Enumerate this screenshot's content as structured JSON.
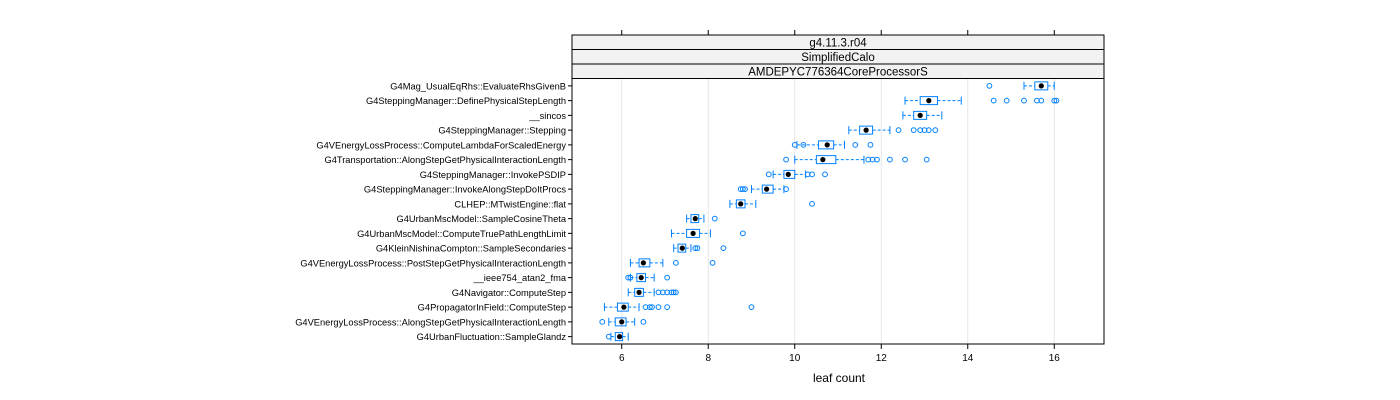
{
  "strips": [
    "g4.11.3.r04",
    "SimplifiedCalo",
    "AMDEPYC776364CoreProcessorS"
  ],
  "colors": {
    "box": "#0080ff",
    "strip": "#f2f2f2",
    "frame": "#000000",
    "grid": "#e6e6e6",
    "median": "#000000"
  },
  "chart_data": {
    "type": "box",
    "xlabel": "leaf count",
    "xlim": [
      4.85,
      17.15
    ],
    "xticks": [
      6,
      8,
      10,
      12,
      14,
      16
    ],
    "grid": "vertical",
    "series": [
      {
        "label": "G4Mag_UsualEqRhs::EvaluateRhsGivenB",
        "min": 15.3,
        "q1": 15.55,
        "median": 15.7,
        "q3": 15.85,
        "max": 16.0,
        "outliers": [
          14.5
        ]
      },
      {
        "label": "G4SteppingManager::DefinePhysicalStepLength",
        "min": 12.55,
        "q1": 12.9,
        "median": 13.1,
        "q3": 13.3,
        "max": 13.85,
        "outliers": [
          14.6,
          14.9,
          15.3,
          15.6,
          15.7,
          16.0,
          16.05
        ]
      },
      {
        "label": "__sincos",
        "min": 12.5,
        "q1": 12.75,
        "median": 12.9,
        "q3": 13.05,
        "max": 13.4,
        "outliers": []
      },
      {
        "label": "G4SteppingManager::Stepping",
        "min": 11.25,
        "q1": 11.5,
        "median": 11.65,
        "q3": 11.8,
        "max": 12.2,
        "outliers": [
          12.4,
          12.75,
          12.9,
          13.0,
          13.1,
          13.25
        ]
      },
      {
        "label": "G4VEnergyLossProcess::ComputeLambdaForScaledEnergy",
        "min": 10.05,
        "q1": 10.55,
        "median": 10.75,
        "q3": 10.9,
        "max": 11.15,
        "outliers": [
          10.0,
          10.2,
          11.4,
          11.75
        ]
      },
      {
        "label": "G4Transportation::AlongStepGetPhysicalInteractionLength",
        "min": 10.0,
        "q1": 10.5,
        "median": 10.65,
        "q3": 10.95,
        "max": 11.6,
        "outliers": [
          9.8,
          11.7,
          11.8,
          11.9,
          12.2,
          12.55,
          13.05
        ]
      },
      {
        "label": "G4SteppingManager::InvokePSDIP",
        "min": 9.5,
        "q1": 9.75,
        "median": 9.85,
        "q3": 10.0,
        "max": 10.25,
        "outliers": [
          9.4,
          10.3,
          10.4,
          10.7
        ]
      },
      {
        "label": "G4SteppingManager::InvokeAlongStepDoItProcs",
        "min": 9.0,
        "q1": 9.25,
        "median": 9.35,
        "q3": 9.5,
        "max": 9.75,
        "outliers": [
          8.75,
          8.8,
          8.85,
          9.8
        ]
      },
      {
        "label": "CLHEP::MTwistEngine::flat",
        "min": 8.5,
        "q1": 8.65,
        "median": 8.75,
        "q3": 8.85,
        "max": 9.1,
        "outliers": [
          10.4
        ]
      },
      {
        "label": "G4UrbanMscModel::SampleCosineTheta",
        "min": 7.5,
        "q1": 7.6,
        "median": 7.7,
        "q3": 7.78,
        "max": 7.9,
        "outliers": [
          8.15
        ]
      },
      {
        "label": "G4UrbanMscModel::ComputeTruePathLengthLimit",
        "min": 7.15,
        "q1": 7.5,
        "median": 7.65,
        "q3": 7.8,
        "max": 8.05,
        "outliers": [
          8.8
        ]
      },
      {
        "label": "G4KleinNishinaCompton::SampleSecondaries",
        "min": 7.2,
        "q1": 7.3,
        "median": 7.4,
        "q3": 7.48,
        "max": 7.6,
        "outliers": [
          7.7,
          7.75,
          8.35
        ]
      },
      {
        "label": "G4VEnergyLossProcess::PostStepGetPhysicalInteractionLength",
        "min": 6.2,
        "q1": 6.4,
        "median": 6.5,
        "q3": 6.65,
        "max": 6.95,
        "outliers": [
          7.25,
          8.1
        ]
      },
      {
        "label": "__ieee754_atan2_fma",
        "min": 6.2,
        "q1": 6.35,
        "median": 6.45,
        "q3": 6.55,
        "max": 6.75,
        "outliers": [
          6.15,
          6.2,
          7.05
        ]
      },
      {
        "label": "G4Navigator::ComputeStep",
        "min": 6.15,
        "q1": 6.3,
        "median": 6.4,
        "q3": 6.5,
        "max": 6.75,
        "outliers": [
          6.85,
          6.95,
          7.05,
          7.15,
          7.2,
          7.25
        ]
      },
      {
        "label": "G4PropagatorInField::ComputeStep",
        "min": 5.6,
        "q1": 5.9,
        "median": 6.05,
        "q3": 6.15,
        "max": 6.4,
        "outliers": [
          6.55,
          6.65,
          6.7,
          6.85,
          7.05,
          9.0
        ]
      },
      {
        "label": "G4VEnergyLossProcess::AlongStepGetPhysicalInteractionLength",
        "min": 5.7,
        "q1": 5.85,
        "median": 6.0,
        "q3": 6.1,
        "max": 6.3,
        "outliers": [
          5.55,
          6.5
        ]
      },
      {
        "label": "G4UrbanFluctuation::SampleGlandz",
        "min": 5.75,
        "q1": 5.85,
        "median": 5.95,
        "q3": 6.02,
        "max": 6.15,
        "outliers": [
          5.7
        ]
      }
    ]
  }
}
